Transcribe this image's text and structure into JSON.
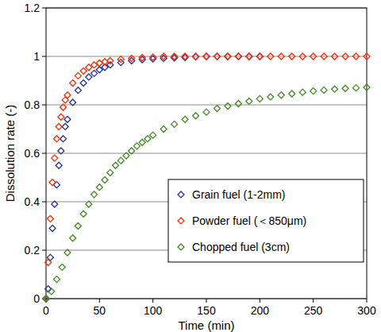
{
  "chart_data": {
    "type": "scatter",
    "x_label": "Time (min)",
    "y_label": "Dissolution rate (-)",
    "xlim": [
      0,
      300
    ],
    "ylim": [
      0,
      1.2
    ],
    "xticks": [
      0,
      50,
      100,
      150,
      200,
      250,
      300
    ],
    "yticks": [
      0,
      0.2,
      0.4,
      0.6,
      0.8,
      1,
      1.2
    ],
    "grid": true,
    "legend": "right",
    "series": [
      {
        "name": "Grain fuel (1-2mm)",
        "color": "#24309a",
        "marker": "diamond",
        "x": [
          0,
          2,
          4,
          6,
          8,
          10,
          12,
          14,
          16,
          18,
          20,
          25,
          30,
          35,
          40,
          45,
          50,
          55,
          60,
          70,
          80,
          90,
          100,
          110,
          120,
          130,
          140,
          150,
          160,
          170,
          180,
          190,
          200
        ],
        "values": [
          0,
          0.04,
          0.17,
          0.29,
          0.39,
          0.47,
          0.55,
          0.61,
          0.66,
          0.71,
          0.74,
          0.81,
          0.86,
          0.89,
          0.915,
          0.93,
          0.945,
          0.955,
          0.965,
          0.975,
          0.982,
          0.987,
          0.99,
          0.992,
          0.994,
          0.996,
          0.998,
          1.0,
          1.0,
          1.0,
          1.0,
          1.0,
          1.0
        ]
      },
      {
        "name": "Powder fuel (＜850μm)",
        "color": "#ff2a00",
        "marker": "diamond",
        "x": [
          0,
          2,
          4,
          6,
          8,
          10,
          12,
          14,
          16,
          18,
          20,
          25,
          30,
          35,
          40,
          45,
          50,
          55,
          60,
          70,
          80,
          90,
          100,
          110,
          120,
          130,
          140,
          150,
          160,
          170,
          180,
          190,
          200,
          210,
          220,
          230,
          240,
          250,
          260,
          270,
          280,
          290,
          300
        ],
        "values": [
          0,
          0.15,
          0.33,
          0.48,
          0.58,
          0.66,
          0.71,
          0.75,
          0.79,
          0.82,
          0.84,
          0.89,
          0.92,
          0.94,
          0.955,
          0.965,
          0.972,
          0.978,
          0.982,
          0.988,
          0.992,
          0.995,
          0.997,
          1.0,
          1.0,
          1.0,
          1.0,
          1.0,
          1.0,
          1.0,
          1.0,
          1.0,
          1.0,
          1.0,
          1.0,
          1.0,
          1.0,
          1.0,
          1.0,
          1.0,
          1.0,
          1.0,
          1.0
        ]
      },
      {
        "name": "Chopped fuel (3cm)",
        "color": "#3f8a1f",
        "marker": "diamond",
        "x": [
          0,
          5,
          10,
          15,
          20,
          25,
          30,
          35,
          40,
          45,
          50,
          55,
          60,
          65,
          70,
          75,
          80,
          85,
          90,
          95,
          100,
          110,
          120,
          130,
          140,
          150,
          160,
          170,
          180,
          190,
          200,
          210,
          220,
          230,
          240,
          250,
          260,
          270,
          280,
          290,
          300
        ],
        "values": [
          0,
          0.03,
          0.08,
          0.13,
          0.19,
          0.25,
          0.3,
          0.35,
          0.39,
          0.43,
          0.46,
          0.49,
          0.52,
          0.55,
          0.57,
          0.59,
          0.61,
          0.63,
          0.645,
          0.66,
          0.675,
          0.7,
          0.72,
          0.74,
          0.755,
          0.77,
          0.785,
          0.795,
          0.805,
          0.815,
          0.825,
          0.833,
          0.84,
          0.846,
          0.852,
          0.857,
          0.861,
          0.865,
          0.868,
          0.87,
          0.872
        ]
      }
    ]
  }
}
